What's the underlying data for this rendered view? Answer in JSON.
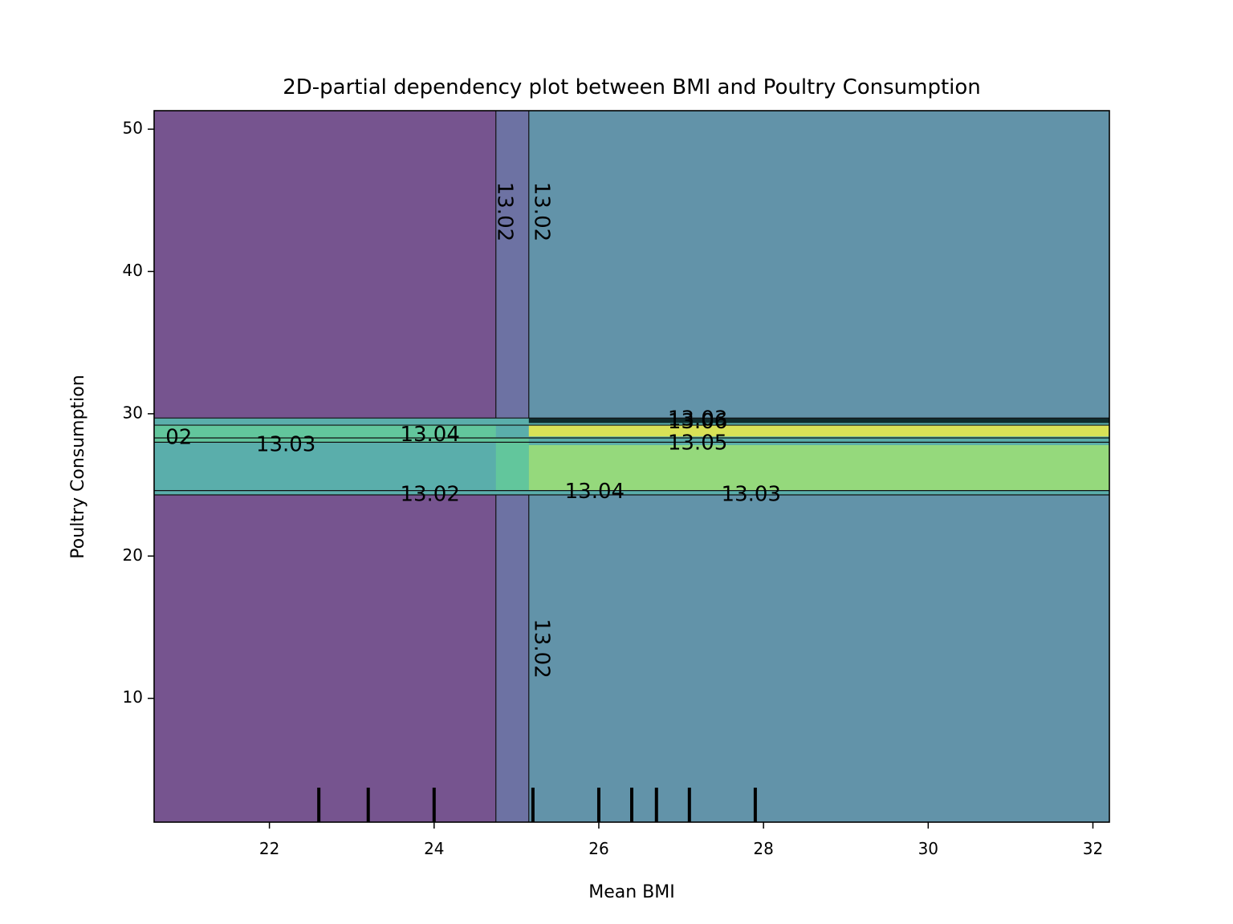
{
  "chart_data": {
    "type": "heatmap",
    "subtype": "filled-contour",
    "title": "2D-partial dependency plot between BMI and Poultry Consumption",
    "xlabel": "Mean BMI",
    "ylabel": "Poultry Consumption",
    "xlim": [
      20.6,
      32.2
    ],
    "ylim": [
      1.3,
      51.3
    ],
    "x_ticks": [
      22,
      24,
      26,
      28,
      30,
      32
    ],
    "y_ticks": [
      10,
      20,
      30,
      40,
      50
    ],
    "grid": false,
    "colormap": "viridis",
    "colors": {
      "level_13_01": "#76548f",
      "level_13_02": "#6d72a3",
      "level_13_025": "#6293a9",
      "level_13_03": "#5aaeab",
      "level_13_04": "#62c69c",
      "level_13_05": "#95d97c",
      "level_13_06": "#d9e257",
      "dark_band": "#0e2b2c"
    },
    "regions": [
      {
        "x": [
          20.6,
          24.75
        ],
        "y": [
          1.3,
          24.3
        ],
        "level": "level_13_01"
      },
      {
        "x": [
          20.6,
          24.75
        ],
        "y": [
          29.7,
          51.3
        ],
        "level": "level_13_01"
      },
      {
        "x": [
          24.75,
          25.15
        ],
        "y": [
          1.3,
          24.3
        ],
        "level": "level_13_02"
      },
      {
        "x": [
          24.75,
          25.15
        ],
        "y": [
          29.7,
          51.3
        ],
        "level": "level_13_02"
      },
      {
        "x": [
          25.15,
          32.2
        ],
        "y": [
          1.3,
          24.3
        ],
        "level": "level_13_025"
      },
      {
        "x": [
          25.15,
          32.2
        ],
        "y": [
          29.7,
          51.3
        ],
        "level": "level_13_025"
      },
      {
        "x": [
          20.6,
          32.2
        ],
        "y": [
          24.3,
          29.7
        ],
        "level": "level_13_03"
      },
      {
        "x": [
          20.6,
          24.75
        ],
        "y": [
          28.0,
          29.2
        ],
        "level": "level_13_04"
      },
      {
        "x": [
          24.75,
          25.15
        ],
        "y": [
          24.6,
          28.3
        ],
        "level": "level_13_04"
      },
      {
        "x": [
          25.15,
          32.2
        ],
        "y": [
          24.6,
          27.8
        ],
        "level": "level_13_05"
      },
      {
        "x": [
          25.15,
          32.2
        ],
        "y": [
          28.4,
          29.2
        ],
        "level": "level_13_06"
      },
      {
        "x": [
          25.15,
          32.2
        ],
        "y": [
          29.35,
          29.7
        ],
        "level": "dark_band"
      }
    ],
    "contour_labels": [
      {
        "text": "13.02",
        "x": 24.85,
        "y": 44.2,
        "rotation": 90
      },
      {
        "text": "13.02",
        "x": 25.3,
        "y": 44.2,
        "rotation": 90
      },
      {
        "text": "13.02",
        "x": 25.3,
        "y": 13.5,
        "rotation": 90
      },
      {
        "text": "02",
        "x": 20.9,
        "y": 28.3,
        "rotation": 0
      },
      {
        "text": "13.03",
        "x": 22.2,
        "y": 27.8,
        "rotation": 0
      },
      {
        "text": "13.04",
        "x": 23.95,
        "y": 28.5,
        "rotation": 0
      },
      {
        "text": "13.02",
        "x": 23.95,
        "y": 24.3,
        "rotation": 0
      },
      {
        "text": "13.04",
        "x": 25.95,
        "y": 24.5,
        "rotation": 0
      },
      {
        "text": "13.03",
        "x": 27.85,
        "y": 24.3,
        "rotation": 0
      },
      {
        "text": "13.05",
        "x": 27.2,
        "y": 27.9,
        "rotation": 0
      },
      {
        "text": "13.03",
        "x": 27.2,
        "y": 29.6,
        "rotation": 0
      },
      {
        "text": "13.06",
        "x": 27.2,
        "y": 29.4,
        "rotation": 0
      }
    ],
    "rug_x": [
      22.6,
      23.2,
      24.0,
      25.2,
      26.0,
      26.4,
      26.7,
      27.1,
      27.9
    ]
  }
}
